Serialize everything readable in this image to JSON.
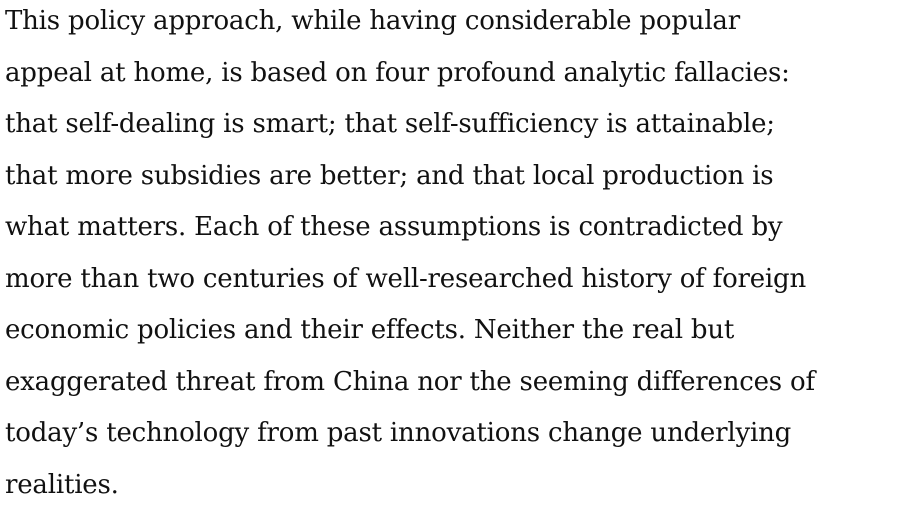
{
  "paragraph": {
    "lines": [
      "This policy approach, while having considerable popular",
      "appeal at home, is based on four profound analytic fallacies:",
      "that self-dealing is smart; that self-sufficiency is attainable;",
      "that more subsidies are better; and that local production is",
      "what matters. Each of these assumptions is contradicted by",
      "more than two centuries of well-researched history of foreign",
      "economic policies and their effects. Neither the real but",
      "exaggerated threat from China nor the seeming differences of",
      "today’s technology from past innovations change underlying",
      "realities."
    ]
  }
}
